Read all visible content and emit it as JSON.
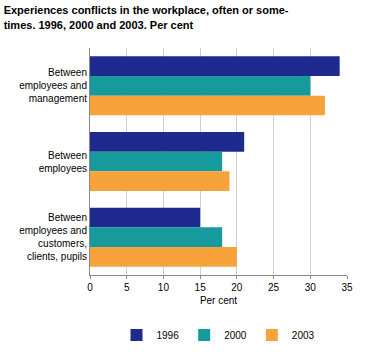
{
  "chart_data": {
    "type": "bar",
    "orientation": "horizontal",
    "title": "Experiences conflicts in the workplace, often or some-\ntimes. 1996, 2000 and 2003. Per cent",
    "x_label": "Per cent",
    "categories": [
      "Between\nemployees and\nmanagement",
      "Between\nemployees",
      "Between\nemployees and\ncustomers,\nclients, pupils"
    ],
    "series": [
      {
        "name": "1996",
        "color": "#1f2a8f",
        "values": [
          34,
          21,
          15
        ]
      },
      {
        "name": "2000",
        "color": "#169a9c",
        "values": [
          30,
          18,
          18
        ]
      },
      {
        "name": "2003",
        "color": "#f7a23b",
        "values": [
          32,
          19,
          20
        ]
      }
    ],
    "xlim": [
      0,
      35
    ],
    "xticks": [
      0,
      5,
      10,
      15,
      20,
      25,
      30,
      35
    ],
    "grid": true,
    "legend": "bottom"
  }
}
